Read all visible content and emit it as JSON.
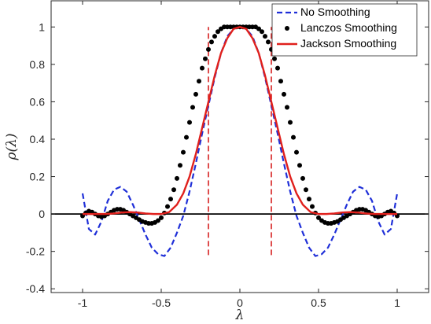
{
  "chart_data": {
    "type": "line",
    "title": "",
    "xlabel": "λ",
    "ylabel": "ρ(λ)",
    "xlim": [
      -1.2,
      1.2
    ],
    "ylim": [
      -0.42,
      1.14
    ],
    "xticks": [
      -1,
      -0.5,
      0,
      0.5,
      1
    ],
    "xtick_labels": [
      "-1",
      "-0.5",
      "0",
      "0.5",
      "1"
    ],
    "yticks": [
      -0.4,
      -0.2,
      0,
      0.2,
      0.4,
      0.6,
      0.8,
      1
    ],
    "ytick_labels": [
      "-0.4",
      "-0.2",
      "0",
      "0.2",
      "0.4",
      "0.6",
      "0.8",
      "1"
    ],
    "grid": false,
    "legend_position": "top-right",
    "reference_lines": {
      "horizontal_zero": {
        "y": 0,
        "color": "#000000"
      },
      "vertical_dashed": {
        "x": [
          -0.2,
          0.2
        ],
        "y_range": [
          -0.22,
          1.0
        ],
        "color": "#d62020"
      }
    },
    "series": [
      {
        "name": "No Smoothing",
        "style": "dashed",
        "color": "#1f2fd8",
        "x": [
          -1.0,
          -0.96,
          -0.92,
          -0.88,
          -0.84,
          -0.8,
          -0.76,
          -0.72,
          -0.68,
          -0.64,
          -0.6,
          -0.56,
          -0.52,
          -0.48,
          -0.44,
          -0.4,
          -0.36,
          -0.32,
          -0.28,
          -0.24,
          -0.2,
          -0.16,
          -0.12,
          -0.08,
          -0.04,
          0.0,
          0.04,
          0.08,
          0.12,
          0.16,
          0.2,
          0.24,
          0.28,
          0.32,
          0.36,
          0.4,
          0.44,
          0.48,
          0.52,
          0.56,
          0.6,
          0.64,
          0.68,
          0.72,
          0.76,
          0.8,
          0.84,
          0.88,
          0.92,
          0.96,
          1.0
        ],
        "y": [
          0.11,
          -0.08,
          -0.11,
          -0.04,
          0.07,
          0.13,
          0.145,
          0.12,
          0.05,
          -0.03,
          -0.11,
          -0.18,
          -0.215,
          -0.225,
          -0.18,
          -0.1,
          -0.01,
          0.12,
          0.27,
          0.43,
          0.58,
          0.73,
          0.86,
          0.95,
          0.99,
          1.0,
          0.99,
          0.95,
          0.86,
          0.73,
          0.58,
          0.43,
          0.27,
          0.12,
          -0.01,
          -0.1,
          -0.18,
          -0.225,
          -0.215,
          -0.18,
          -0.11,
          -0.03,
          0.05,
          0.12,
          0.145,
          0.13,
          0.07,
          -0.04,
          -0.11,
          -0.08,
          0.11
        ]
      },
      {
        "name": "Lanczos Smoothing",
        "style": "markers",
        "color": "#000000",
        "x": [
          -1.0,
          -0.98,
          -0.96,
          -0.94,
          -0.92,
          -0.9,
          -0.88,
          -0.86,
          -0.84,
          -0.82,
          -0.8,
          -0.78,
          -0.76,
          -0.74,
          -0.72,
          -0.7,
          -0.68,
          -0.66,
          -0.64,
          -0.62,
          -0.6,
          -0.58,
          -0.56,
          -0.54,
          -0.52,
          -0.5,
          -0.48,
          -0.46,
          -0.44,
          -0.42,
          -0.4,
          -0.38,
          -0.36,
          -0.34,
          -0.32,
          -0.3,
          -0.28,
          -0.26,
          -0.24,
          -0.22,
          -0.2,
          -0.18,
          -0.16,
          -0.14,
          -0.12,
          -0.1,
          -0.08,
          -0.06,
          -0.04,
          -0.02,
          0.0,
          0.02,
          0.04,
          0.06,
          0.08,
          0.1,
          0.12,
          0.14,
          0.16,
          0.18,
          0.2,
          0.22,
          0.24,
          0.26,
          0.28,
          0.3,
          0.32,
          0.34,
          0.36,
          0.38,
          0.4,
          0.42,
          0.44,
          0.46,
          0.48,
          0.5,
          0.52,
          0.54,
          0.56,
          0.58,
          0.6,
          0.62,
          0.64,
          0.66,
          0.68,
          0.7,
          0.72,
          0.74,
          0.76,
          0.78,
          0.8,
          0.82,
          0.84,
          0.86,
          0.88,
          0.9,
          0.92,
          0.94,
          0.96,
          0.98,
          1.0
        ],
        "y": [
          -0.01,
          0.005,
          0.015,
          0.01,
          0.0,
          -0.01,
          -0.015,
          -0.01,
          0.0,
          0.01,
          0.02,
          0.025,
          0.025,
          0.02,
          0.01,
          0.0,
          -0.01,
          -0.02,
          -0.03,
          -0.04,
          -0.045,
          -0.05,
          -0.05,
          -0.045,
          -0.035,
          -0.02,
          0.005,
          0.04,
          0.08,
          0.13,
          0.19,
          0.26,
          0.33,
          0.41,
          0.49,
          0.57,
          0.64,
          0.71,
          0.78,
          0.83,
          0.88,
          0.92,
          0.95,
          0.975,
          0.99,
          1.0,
          1.0,
          1.0,
          1.0,
          1.0,
          1.0,
          1.0,
          1.0,
          1.0,
          1.0,
          1.0,
          0.99,
          0.975,
          0.95,
          0.92,
          0.88,
          0.83,
          0.78,
          0.71,
          0.64,
          0.57,
          0.49,
          0.41,
          0.33,
          0.26,
          0.19,
          0.13,
          0.08,
          0.04,
          0.005,
          -0.02,
          -0.035,
          -0.045,
          -0.05,
          -0.05,
          -0.045,
          -0.04,
          -0.03,
          -0.02,
          -0.01,
          0.0,
          0.01,
          0.02,
          0.025,
          0.025,
          0.02,
          0.01,
          0.0,
          -0.01,
          -0.015,
          -0.01,
          0.0,
          0.01,
          0.015,
          0.005,
          -0.01
        ]
      },
      {
        "name": "Jackson Smoothing",
        "style": "solid",
        "color": "#e0201c",
        "x": [
          -1.0,
          -0.95,
          -0.9,
          -0.85,
          -0.8,
          -0.75,
          -0.7,
          -0.65,
          -0.6,
          -0.55,
          -0.5,
          -0.45,
          -0.4,
          -0.36,
          -0.32,
          -0.28,
          -0.24,
          -0.2,
          -0.16,
          -0.12,
          -0.08,
          -0.04,
          0.0,
          0.04,
          0.08,
          0.12,
          0.16,
          0.2,
          0.24,
          0.28,
          0.32,
          0.36,
          0.4,
          0.45,
          0.5,
          0.55,
          0.6,
          0.65,
          0.7,
          0.75,
          0.8,
          0.85,
          0.9,
          0.95,
          1.0
        ],
        "y": [
          0.0,
          0.0,
          0.0,
          0.0,
          0.003,
          0.008,
          0.01,
          0.008,
          0.003,
          0.0,
          0.0,
          0.01,
          0.05,
          0.11,
          0.2,
          0.32,
          0.46,
          0.6,
          0.74,
          0.86,
          0.94,
          0.99,
          1.0,
          0.99,
          0.94,
          0.86,
          0.74,
          0.6,
          0.46,
          0.32,
          0.2,
          0.11,
          0.05,
          0.01,
          0.0,
          0.0,
          0.003,
          0.008,
          0.01,
          0.008,
          0.003,
          0.0,
          0.0,
          0.0,
          0.0
        ]
      }
    ]
  }
}
